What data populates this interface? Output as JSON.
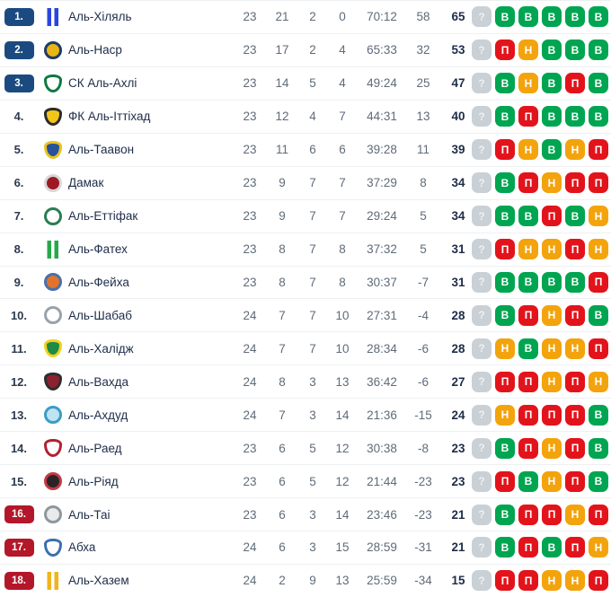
{
  "table": {
    "form_legend": {
      "win": "В",
      "draw": "Н",
      "loss": "П",
      "unknown": "?"
    },
    "colors": {
      "promotion_badge": "#1b4a80",
      "relegation_badge": "#b31729",
      "form_win": "#00a551",
      "form_draw": "#f3a30c",
      "form_loss": "#e3131b",
      "form_unknown": "#c9d0d6",
      "row_divider": "#edf0f2",
      "text_primary": "#1e2c49",
      "text_stats": "#5f6b78"
    },
    "rows": [
      {
        "pos": "1.",
        "zone": "top",
        "team": "Аль-Хіляль",
        "played": "23",
        "wins": "21",
        "draws": "2",
        "losses": "0",
        "goals": "70:12",
        "diff": "58",
        "points": "65",
        "form": [
          "unknown",
          "win",
          "win",
          "win",
          "win",
          "win"
        ],
        "crest": {
          "shape": "stripes",
          "fill": "#ffffff",
          "accent": "#2946e0"
        }
      },
      {
        "pos": "2.",
        "zone": "top",
        "team": "Аль-Наср",
        "played": "23",
        "wins": "17",
        "draws": "2",
        "losses": "4",
        "goals": "65:33",
        "diff": "32",
        "points": "53",
        "form": [
          "unknown",
          "loss",
          "draw",
          "win",
          "win",
          "win"
        ],
        "crest": {
          "shape": "circle",
          "fill": "#e9b513",
          "accent": "#1d3c66"
        }
      },
      {
        "pos": "3.",
        "zone": "top",
        "team": "СК Аль-Ахлі",
        "played": "23",
        "wins": "14",
        "draws": "5",
        "losses": "4",
        "goals": "49:24",
        "diff": "25",
        "points": "47",
        "form": [
          "unknown",
          "win",
          "draw",
          "win",
          "loss",
          "win"
        ],
        "crest": {
          "shape": "shield",
          "fill": "#ffffff",
          "accent": "#0e7a42"
        }
      },
      {
        "pos": "4.",
        "zone": "none",
        "team": "ФК Аль-Іттіхад",
        "played": "23",
        "wins": "12",
        "draws": "4",
        "losses": "7",
        "goals": "44:31",
        "diff": "13",
        "points": "40",
        "form": [
          "unknown",
          "win",
          "loss",
          "win",
          "win",
          "win"
        ],
        "crest": {
          "shape": "shield",
          "fill": "#f2c618",
          "accent": "#2b2b2b"
        }
      },
      {
        "pos": "5.",
        "zone": "none",
        "team": "Аль-Таавон",
        "played": "23",
        "wins": "11",
        "draws": "6",
        "losses": "6",
        "goals": "39:28",
        "diff": "11",
        "points": "39",
        "form": [
          "unknown",
          "loss",
          "draw",
          "win",
          "draw",
          "loss"
        ],
        "crest": {
          "shape": "shield",
          "fill": "#28529c",
          "accent": "#e8c21f"
        }
      },
      {
        "pos": "6.",
        "zone": "none",
        "team": "Дамак",
        "played": "23",
        "wins": "9",
        "draws": "7",
        "losses": "7",
        "goals": "37:29",
        "diff": "8",
        "points": "34",
        "form": [
          "unknown",
          "win",
          "loss",
          "draw",
          "loss",
          "loss"
        ],
        "crest": {
          "shape": "circle",
          "fill": "#9c1a24",
          "accent": "#d8d8d8"
        }
      },
      {
        "pos": "7.",
        "zone": "none",
        "team": "Аль-Еттіфак",
        "played": "23",
        "wins": "9",
        "draws": "7",
        "losses": "7",
        "goals": "29:24",
        "diff": "5",
        "points": "34",
        "form": [
          "unknown",
          "win",
          "win",
          "loss",
          "win",
          "draw"
        ],
        "crest": {
          "shape": "circle",
          "fill": "#ffffff",
          "accent": "#2a7d52"
        }
      },
      {
        "pos": "8.",
        "zone": "none",
        "team": "Аль-Фатех",
        "played": "23",
        "wins": "8",
        "draws": "7",
        "losses": "8",
        "goals": "37:32",
        "diff": "5",
        "points": "31",
        "form": [
          "unknown",
          "loss",
          "draw",
          "draw",
          "loss",
          "draw"
        ],
        "crest": {
          "shape": "stripes",
          "fill": "#ffffff",
          "accent": "#27a84a"
        }
      },
      {
        "pos": "9.",
        "zone": "none",
        "team": "Аль-Фейха",
        "played": "23",
        "wins": "8",
        "draws": "7",
        "losses": "8",
        "goals": "30:37",
        "diff": "-7",
        "points": "31",
        "form": [
          "unknown",
          "win",
          "win",
          "win",
          "win",
          "loss"
        ],
        "crest": {
          "shape": "circle",
          "fill": "#e0742a",
          "accent": "#4a6fae"
        }
      },
      {
        "pos": "10.",
        "zone": "none",
        "team": "Аль-Шабаб",
        "played": "24",
        "wins": "7",
        "draws": "7",
        "losses": "10",
        "goals": "27:31",
        "diff": "-4",
        "points": "28",
        "form": [
          "unknown",
          "win",
          "loss",
          "draw",
          "loss",
          "win"
        ],
        "crest": {
          "shape": "circle",
          "fill": "#ffffff",
          "accent": "#9aa2ab"
        }
      },
      {
        "pos": "11.",
        "zone": "none",
        "team": "Аль-Халідж",
        "played": "24",
        "wins": "7",
        "draws": "7",
        "losses": "10",
        "goals": "28:34",
        "diff": "-6",
        "points": "28",
        "form": [
          "unknown",
          "draw",
          "win",
          "draw",
          "draw",
          "loss"
        ],
        "crest": {
          "shape": "shield",
          "fill": "#1d8a46",
          "accent": "#f0d11c"
        }
      },
      {
        "pos": "12.",
        "zone": "none",
        "team": "Аль-Вахда",
        "played": "24",
        "wins": "8",
        "draws": "3",
        "losses": "13",
        "goals": "36:42",
        "diff": "-6",
        "points": "27",
        "form": [
          "unknown",
          "loss",
          "loss",
          "draw",
          "loss",
          "draw"
        ],
        "crest": {
          "shape": "shield",
          "fill": "#8e2130",
          "accent": "#2e2e2e"
        }
      },
      {
        "pos": "13.",
        "zone": "none",
        "team": "Аль-Ахдуд",
        "played": "24",
        "wins": "7",
        "draws": "3",
        "losses": "14",
        "goals": "21:36",
        "diff": "-15",
        "points": "24",
        "form": [
          "unknown",
          "draw",
          "loss",
          "loss",
          "loss",
          "win"
        ],
        "crest": {
          "shape": "circle",
          "fill": "#bfe3f2",
          "accent": "#3c9cc4"
        }
      },
      {
        "pos": "14.",
        "zone": "none",
        "team": "Аль-Раед",
        "played": "23",
        "wins": "6",
        "draws": "5",
        "losses": "12",
        "goals": "30:38",
        "diff": "-8",
        "points": "23",
        "form": [
          "unknown",
          "win",
          "loss",
          "draw",
          "loss",
          "win"
        ],
        "crest": {
          "shape": "shield",
          "fill": "#ffffff",
          "accent": "#b02231"
        }
      },
      {
        "pos": "15.",
        "zone": "none",
        "team": "Аль-Ріяд",
        "played": "23",
        "wins": "6",
        "draws": "5",
        "losses": "12",
        "goals": "21:44",
        "diff": "-23",
        "points": "23",
        "form": [
          "unknown",
          "loss",
          "win",
          "draw",
          "loss",
          "win"
        ],
        "crest": {
          "shape": "circle",
          "fill": "#2b2326",
          "accent": "#c13a45"
        }
      },
      {
        "pos": "16.",
        "zone": "bottom",
        "team": "Аль-Таі",
        "played": "23",
        "wins": "6",
        "draws": "3",
        "losses": "14",
        "goals": "23:46",
        "diff": "-23",
        "points": "21",
        "form": [
          "unknown",
          "win",
          "loss",
          "loss",
          "draw",
          "loss"
        ],
        "crest": {
          "shape": "circle",
          "fill": "#e8eaec",
          "accent": "#8f979e"
        }
      },
      {
        "pos": "17.",
        "zone": "bottom",
        "team": "Абха",
        "played": "24",
        "wins": "6",
        "draws": "3",
        "losses": "15",
        "goals": "28:59",
        "diff": "-31",
        "points": "21",
        "form": [
          "unknown",
          "win",
          "loss",
          "win",
          "loss",
          "draw"
        ],
        "crest": {
          "shape": "shield",
          "fill": "#ffffff",
          "accent": "#3a6fb0"
        }
      },
      {
        "pos": "18.",
        "zone": "bottom",
        "team": "Аль-Хазем",
        "played": "24",
        "wins": "2",
        "draws": "9",
        "losses": "13",
        "goals": "25:59",
        "diff": "-34",
        "points": "15",
        "form": [
          "unknown",
          "loss",
          "loss",
          "draw",
          "draw",
          "loss"
        ],
        "crest": {
          "shape": "stripes",
          "fill": "#ffffff",
          "accent": "#f2b31c"
        }
      }
    ]
  }
}
